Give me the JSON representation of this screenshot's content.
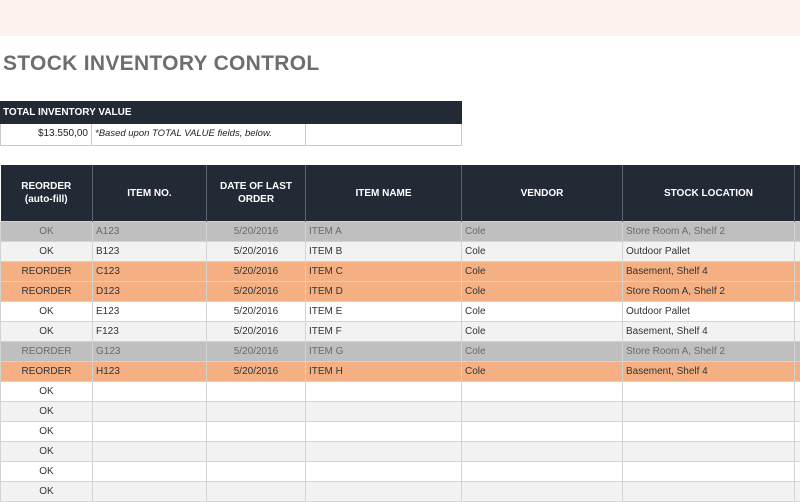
{
  "title": "STOCK INVENTORY CONTROL",
  "total": {
    "header": "TOTAL INVENTORY VALUE",
    "value": "$13.550,00",
    "note": "*Based upon TOTAL VALUE fields, below."
  },
  "table": {
    "headers": {
      "reorder_line1": "REORDER",
      "reorder_line2": "(auto-fill)",
      "item_no": "ITEM NO.",
      "date_line1": "DATE OF LAST",
      "date_line2": "ORDER",
      "item_name": "ITEM NAME",
      "vendor": "VENDOR",
      "location": "STOCK LOCATION"
    },
    "rows": [
      {
        "reorder": "OK",
        "item_no": "A123",
        "date": "5/20/2016",
        "name": "ITEM A",
        "vendor": "Cole",
        "location": "Store Room A, Shelf 2",
        "last": "",
        "style": "gray"
      },
      {
        "reorder": "OK",
        "item_no": "B123",
        "date": "5/20/2016",
        "name": "ITEM B",
        "vendor": "Cole",
        "location": "Outdoor Pallet",
        "last": "",
        "style": "light"
      },
      {
        "reorder": "REORDER",
        "item_no": "C123",
        "date": "5/20/2016",
        "name": "ITEM C",
        "vendor": "Cole",
        "location": "Basement, Shelf 4",
        "last": "",
        "style": "orange"
      },
      {
        "reorder": "REORDER",
        "item_no": "D123",
        "date": "5/20/2016",
        "name": "ITEM D",
        "vendor": "Cole",
        "location": "Store Room A, Shelf 2",
        "last": "",
        "style": "orange"
      },
      {
        "reorder": "OK",
        "item_no": "E123",
        "date": "5/20/2016",
        "name": "ITEM E",
        "vendor": "Cole",
        "location": "Outdoor Pallet",
        "last": "",
        "style": "white"
      },
      {
        "reorder": "OK",
        "item_no": "F123",
        "date": "5/20/2016",
        "name": "ITEM F",
        "vendor": "Cole",
        "location": "Basement, Shelf 4",
        "last": "",
        "style": "light"
      },
      {
        "reorder": "REORDER",
        "item_no": "G123",
        "date": "5/20/2016",
        "name": "ITEM G",
        "vendor": "Cole",
        "location": "Store Room A, Shelf 2",
        "last": "",
        "style": "gray"
      },
      {
        "reorder": "REORDER",
        "item_no": "H123",
        "date": "5/20/2016",
        "name": "ITEM H",
        "vendor": "Cole",
        "location": "Basement, Shelf 4",
        "last": "",
        "style": "orange"
      },
      {
        "reorder": "OK",
        "item_no": "",
        "date": "",
        "name": "",
        "vendor": "",
        "location": "",
        "last": "",
        "style": "white"
      },
      {
        "reorder": "OK",
        "item_no": "",
        "date": "",
        "name": "",
        "vendor": "",
        "location": "",
        "last": "",
        "style": "light"
      },
      {
        "reorder": "OK",
        "item_no": "",
        "date": "",
        "name": "",
        "vendor": "",
        "location": "",
        "last": "",
        "style": "white"
      },
      {
        "reorder": "OK",
        "item_no": "",
        "date": "",
        "name": "",
        "vendor": "",
        "location": "",
        "last": "",
        "style": "light"
      },
      {
        "reorder": "OK",
        "item_no": "",
        "date": "",
        "name": "",
        "vendor": "",
        "location": "",
        "last": "",
        "style": "white"
      },
      {
        "reorder": "OK",
        "item_no": "",
        "date": "",
        "name": "",
        "vendor": "",
        "location": "",
        "last": "",
        "style": "light"
      }
    ]
  },
  "colors": {
    "header_bg": "#222b35",
    "reorder_highlight": "#f4b083",
    "inactive_row": "#bfbfbf",
    "top_band": "#fdf2ee"
  }
}
